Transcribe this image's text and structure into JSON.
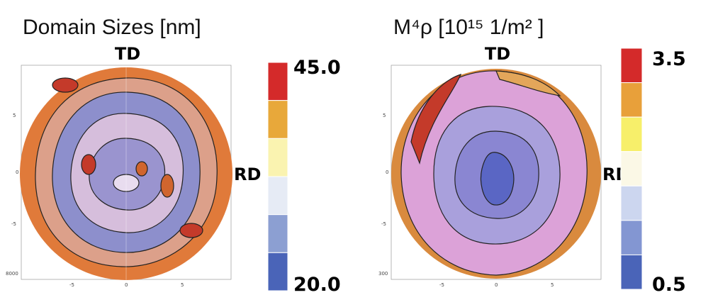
{
  "panels": [
    {
      "title": "Domain Sizes [nm]",
      "td": "TD",
      "rd": "RD",
      "colorbar_max": "45.0",
      "colorbar_min": "20.0",
      "colorbar_colors": [
        "#d42a2a",
        "#e8a83a",
        "#faf3b0",
        "#e6ebf5",
        "#8c9fd2",
        "#4a64b8"
      ],
      "yticks": [
        "5",
        "0",
        "-5",
        "8000"
      ],
      "xticks": [
        "-5",
        "0",
        "5"
      ]
    },
    {
      "title": "M⁴ρ [10¹⁵ 1/m² ]",
      "td": "TD",
      "rd": "RD",
      "colorbar_max": "3.5",
      "colorbar_min": "0.5",
      "colorbar_colors": [
        "#d42a2a",
        "#e8a03a",
        "#f7ef6a",
        "#fbf8e6",
        "#ccd6ef",
        "#8396d2",
        "#4a64b8"
      ],
      "yticks": [
        "5",
        "0",
        "-5",
        "300"
      ],
      "xticks": [
        "-5",
        "0",
        "5"
      ]
    }
  ]
}
